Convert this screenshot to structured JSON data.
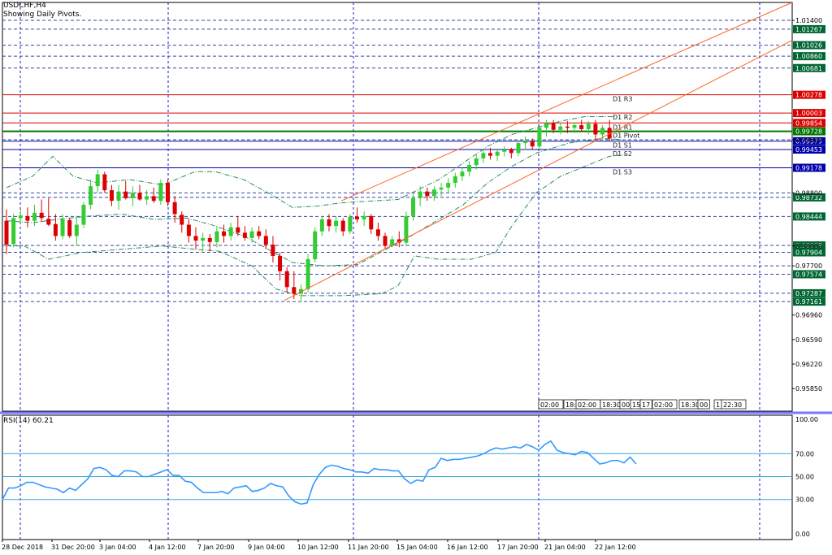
{
  "header": {
    "symbol": "USDCHF,H4",
    "subtitle": "Showing Daily Pivots."
  },
  "rsi_panel": {
    "caption": "RSI(14) 60.21"
  },
  "colors": {
    "bull": "#33cc33",
    "bear": "#dd0000",
    "pivot_resistance": "#dd0000",
    "pivot_main": "#007700",
    "pivot_support": "#0000aa",
    "channel": "#ff6622",
    "rsi_line": "#3399ff",
    "grid": "#1a1acc",
    "envelope": "#2a8a5a"
  },
  "chart_data": [
    {
      "type": "candlestick",
      "symbol": "USDCHF",
      "timeframe": "H4",
      "x_tick_labels": [
        "28 Dec 2018",
        "31 Dec 20:00",
        "3 Jan 04:00",
        "4 Jan 12:00",
        "7 Jan 20:00",
        "9 Jan 04:00",
        "10 Jan 12:00",
        "11 Jan 20:00",
        "15 Jan 04:00",
        "16 Jan 12:00",
        "17 Jan 20:00",
        "21 Jan 04:00",
        "22 Jan 12:00"
      ],
      "y_tick_labels": [
        "1.01400",
        "0.99600",
        "0.98800",
        "0.98000",
        "0.97700",
        "0.96960",
        "0.96590",
        "0.96220",
        "0.95850"
      ],
      "ylim": [
        0.9551,
        1.0167
      ],
      "level_labels": [
        {
          "value": 1.01267,
          "color": "#006633"
        },
        {
          "value": 1.01026,
          "color": "#006633"
        },
        {
          "value": 1.0086,
          "color": "#006633"
        },
        {
          "value": 1.00681,
          "color": "#006633"
        },
        {
          "value": 1.00278,
          "color": "#dd0000"
        },
        {
          "value": 1.00003,
          "color": "#dd0000"
        },
        {
          "value": 0.99854,
          "color": "#dd0000"
        },
        {
          "value": 0.99728,
          "color": "#007700"
        },
        {
          "value": 0.99579,
          "color": "#0000aa"
        },
        {
          "value": 0.99453,
          "color": "#0000aa"
        },
        {
          "value": 0.99178,
          "color": "#0000aa"
        },
        {
          "value": 0.98732,
          "color": "#006633"
        },
        {
          "value": 0.98444,
          "color": "#006633"
        },
        {
          "value": 0.98008,
          "color": "#006633"
        },
        {
          "value": 0.97904,
          "color": "#006633"
        },
        {
          "value": 0.97574,
          "color": "#006633"
        },
        {
          "value": 0.97287,
          "color": "#006633"
        },
        {
          "value": 0.97161,
          "color": "#006633"
        }
      ],
      "pivots": [
        {
          "name": "D1 R3",
          "value": 1.00278,
          "kind": "resistance"
        },
        {
          "name": "D1 R2",
          "value": 1.00003,
          "kind": "resistance"
        },
        {
          "name": "D1 R1",
          "value": 0.99854,
          "kind": "resistance"
        },
        {
          "name": "D1 Pivot",
          "value": 0.99728,
          "kind": "pivot"
        },
        {
          "name": "D1 S1",
          "value": 0.99579,
          "kind": "support"
        },
        {
          "name": "D1 S2",
          "value": 0.99453,
          "kind": "support"
        },
        {
          "name": "D1 S3",
          "value": 0.99178,
          "kind": "support"
        }
      ],
      "candles_ohlc": [
        [
          0.9838,
          0.9855,
          0.9788,
          0.9802
        ],
        [
          0.9803,
          0.9848,
          0.9798,
          0.9842
        ],
        [
          0.9842,
          0.9855,
          0.9833,
          0.9846
        ],
        [
          0.9845,
          0.9858,
          0.9828,
          0.9838
        ],
        [
          0.9838,
          0.9862,
          0.983,
          0.985
        ],
        [
          0.985,
          0.987,
          0.9836,
          0.9842
        ],
        [
          0.9841,
          0.9872,
          0.983,
          0.9832
        ],
        [
          0.9833,
          0.9848,
          0.9808,
          0.9815
        ],
        [
          0.9815,
          0.9848,
          0.981,
          0.984
        ],
        [
          0.9839,
          0.9842,
          0.9812,
          0.9815
        ],
        [
          0.9815,
          0.9845,
          0.98,
          0.9832
        ],
        [
          0.9832,
          0.9866,
          0.9827,
          0.9862
        ],
        [
          0.9862,
          0.99,
          0.9855,
          0.989
        ],
        [
          0.989,
          0.9915,
          0.988,
          0.9908
        ],
        [
          0.9908,
          0.9912,
          0.988,
          0.9884
        ],
        [
          0.9884,
          0.9892,
          0.986,
          0.9868
        ],
        [
          0.9868,
          0.9892,
          0.9855,
          0.9882
        ],
        [
          0.9882,
          0.9898,
          0.987,
          0.9872
        ],
        [
          0.9872,
          0.989,
          0.986,
          0.988
        ],
        [
          0.988,
          0.9892,
          0.9868,
          0.987
        ],
        [
          0.987,
          0.9884,
          0.9862,
          0.9875
        ],
        [
          0.9875,
          0.9888,
          0.9865,
          0.9868
        ],
        [
          0.9868,
          0.99,
          0.9862,
          0.9895
        ],
        [
          0.9895,
          0.99,
          0.986,
          0.9866
        ],
        [
          0.9866,
          0.9875,
          0.9835,
          0.9848
        ],
        [
          0.9847,
          0.9852,
          0.982,
          0.9832
        ],
        [
          0.9832,
          0.984,
          0.9805,
          0.9815
        ],
        [
          0.9815,
          0.9828,
          0.9795,
          0.9808
        ],
        [
          0.9808,
          0.982,
          0.979,
          0.9812
        ],
        [
          0.9812,
          0.9818,
          0.9792,
          0.9806
        ],
        [
          0.9806,
          0.983,
          0.9798,
          0.9822
        ],
        [
          0.9822,
          0.9832,
          0.9805,
          0.9815
        ],
        [
          0.9815,
          0.9835,
          0.9808,
          0.9828
        ],
        [
          0.9828,
          0.9845,
          0.9815,
          0.982
        ],
        [
          0.982,
          0.983,
          0.9808,
          0.9812
        ],
        [
          0.9812,
          0.9828,
          0.9805,
          0.9822
        ],
        [
          0.9822,
          0.983,
          0.981,
          0.9815
        ],
        [
          0.9815,
          0.9825,
          0.9795,
          0.9802
        ],
        [
          0.9802,
          0.9815,
          0.9775,
          0.9785
        ],
        [
          0.9785,
          0.979,
          0.9748,
          0.9762
        ],
        [
          0.9762,
          0.9768,
          0.973,
          0.9738
        ],
        [
          0.9738,
          0.9762,
          0.972,
          0.9728
        ],
        [
          0.9728,
          0.9742,
          0.9715,
          0.9735
        ],
        [
          0.9735,
          0.9788,
          0.973,
          0.978
        ],
        [
          0.978,
          0.9828,
          0.9775,
          0.9822
        ],
        [
          0.9822,
          0.9845,
          0.9815,
          0.984
        ],
        [
          0.984,
          0.9848,
          0.9822,
          0.983
        ],
        [
          0.983,
          0.9845,
          0.982,
          0.9838
        ],
        [
          0.9838,
          0.9842,
          0.9815,
          0.9822
        ],
        [
          0.9822,
          0.9848,
          0.9818,
          0.9844
        ],
        [
          0.9844,
          0.9858,
          0.9835,
          0.984
        ],
        [
          0.984,
          0.9852,
          0.983,
          0.9845
        ],
        [
          0.9845,
          0.9848,
          0.9818,
          0.9825
        ],
        [
          0.9825,
          0.9835,
          0.9808,
          0.9815
        ],
        [
          0.9815,
          0.982,
          0.9795,
          0.98
        ],
        [
          0.98,
          0.9815,
          0.9798,
          0.981
        ],
        [
          0.981,
          0.9822,
          0.9798,
          0.9805
        ],
        [
          0.9805,
          0.9852,
          0.98,
          0.9845
        ],
        [
          0.9845,
          0.9878,
          0.9838,
          0.9872
        ],
        [
          0.9872,
          0.989,
          0.986,
          0.9882
        ],
        [
          0.9882,
          0.9888,
          0.9868,
          0.9875
        ],
        [
          0.9875,
          0.989,
          0.9868,
          0.9885
        ],
        [
          0.9885,
          0.9895,
          0.9875,
          0.9888
        ],
        [
          0.9888,
          0.9902,
          0.988,
          0.9895
        ],
        [
          0.9895,
          0.991,
          0.9888,
          0.9905
        ],
        [
          0.9905,
          0.9918,
          0.9898,
          0.9912
        ],
        [
          0.9912,
          0.9928,
          0.9905,
          0.9922
        ],
        [
          0.9922,
          0.9938,
          0.9915,
          0.9932
        ],
        [
          0.9932,
          0.9945,
          0.9925,
          0.994
        ],
        [
          0.994,
          0.9948,
          0.993,
          0.9936
        ],
        [
          0.9936,
          0.9945,
          0.9928,
          0.9942
        ],
        [
          0.9942,
          0.995,
          0.9935,
          0.9945
        ],
        [
          0.9945,
          0.9948,
          0.9932,
          0.994
        ],
        [
          0.994,
          0.9958,
          0.9935,
          0.9955
        ],
        [
          0.9955,
          0.9965,
          0.9945,
          0.9958
        ],
        [
          0.9958,
          0.9962,
          0.9945,
          0.995
        ],
        [
          0.995,
          0.9982,
          0.9945,
          0.9978
        ],
        [
          0.9978,
          0.999,
          0.9965,
          0.9985
        ],
        [
          0.9985,
          0.999,
          0.997,
          0.9975
        ],
        [
          0.9975,
          0.9986,
          0.9968,
          0.998
        ],
        [
          0.998,
          0.9988,
          0.997,
          0.9978
        ],
        [
          0.9978,
          0.9986,
          0.997,
          0.9982
        ],
        [
          0.9982,
          0.999,
          0.9972,
          0.9976
        ],
        [
          0.9976,
          0.9988,
          0.9968,
          0.9984
        ],
        [
          0.9984,
          0.999,
          0.996,
          0.9968
        ],
        [
          0.9968,
          0.9982,
          0.9962,
          0.9978
        ],
        [
          0.9978,
          0.999,
          0.9958,
          0.9962
        ]
      ]
    },
    {
      "type": "line",
      "title": "RSI(14) 60.21",
      "y_tick_labels": [
        "100.00",
        "70.00",
        "50.00",
        "30.00",
        "0.00"
      ],
      "ylim": [
        0,
        100
      ],
      "levels": [
        70,
        50,
        30
      ],
      "x_tick_labels": [
        "02:00",
        "18:00",
        "02:00",
        "18:30",
        "00",
        "15",
        "17",
        "02:00",
        "18:30",
        "00",
        "1",
        "22:30"
      ],
      "series": [
        {
          "values": [
            30,
            40,
            40,
            42,
            45,
            45,
            43,
            41,
            40,
            39,
            36,
            40,
            38,
            43,
            48,
            57,
            58,
            56,
            51,
            50,
            55,
            55,
            54,
            50,
            50,
            52,
            54,
            56,
            51,
            51,
            46,
            45,
            40,
            36,
            36,
            36,
            37,
            35,
            40,
            41,
            42,
            37,
            38,
            40,
            44,
            42,
            41,
            33,
            28,
            26,
            27,
            43,
            52,
            58,
            60,
            59,
            57,
            56,
            54,
            54,
            53,
            57,
            56,
            56,
            55,
            55,
            48,
            44,
            47,
            46,
            56,
            58,
            66,
            64,
            65,
            65,
            66,
            67,
            68,
            70,
            73,
            75,
            74,
            75,
            76,
            75,
            78,
            76,
            73,
            78,
            81,
            73,
            71,
            70,
            69,
            72,
            71,
            66,
            61,
            62,
            64,
            64,
            62,
            67,
            61
          ]
        }
      ]
    }
  ]
}
